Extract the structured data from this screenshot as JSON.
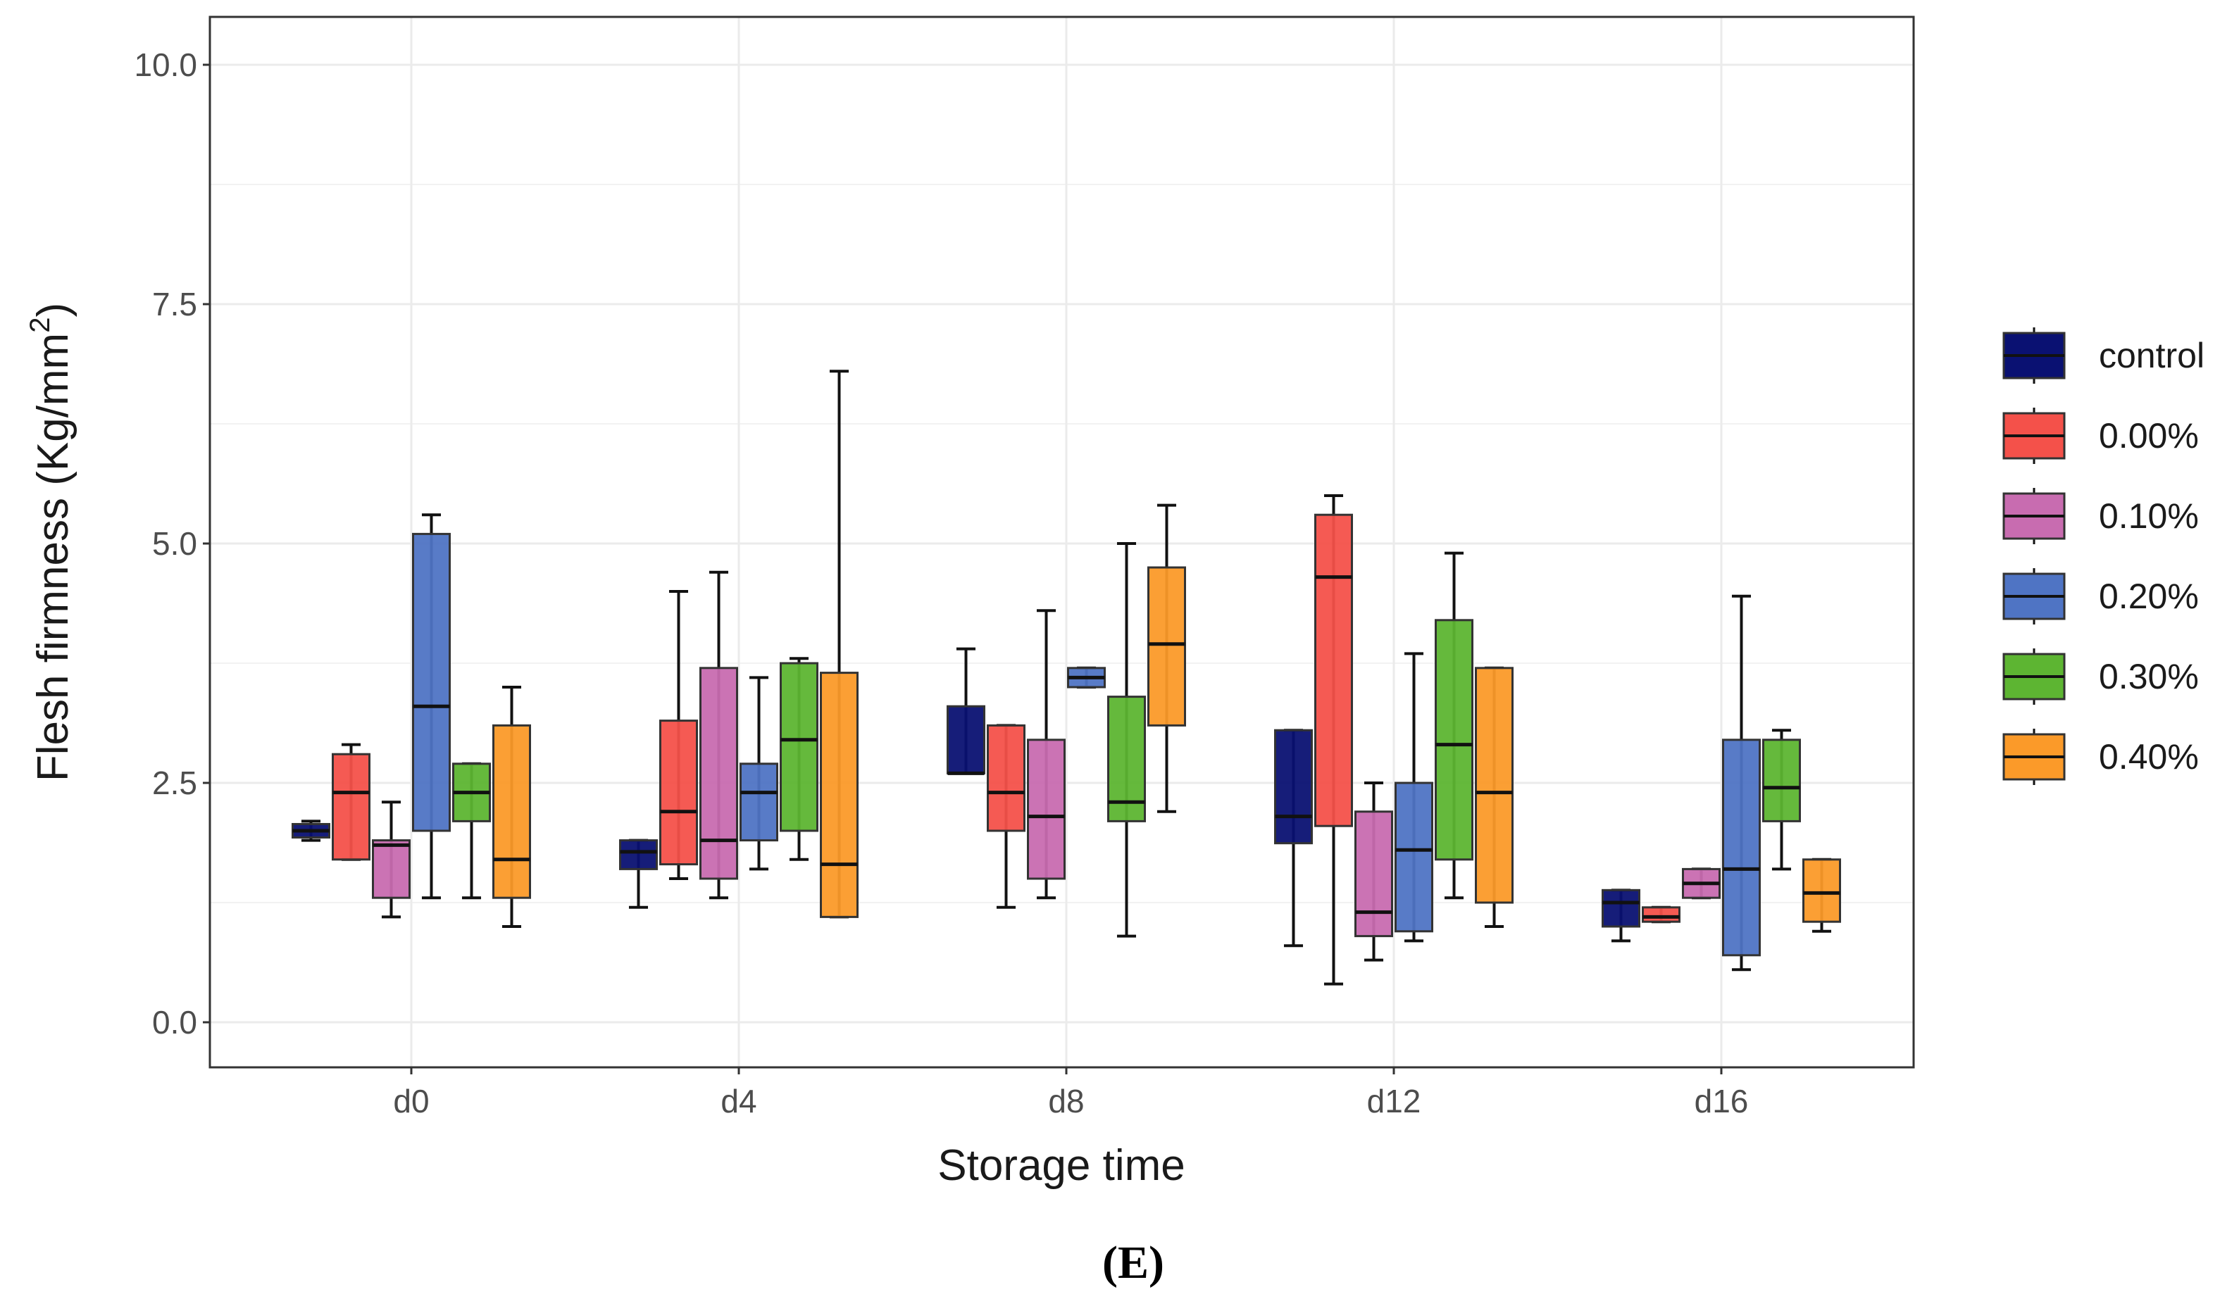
{
  "chart_data": {
    "type": "box",
    "title": "",
    "xlabel": "Storage time",
    "ylabel": "Flesh firmness (Kg/mm",
    "ylabel_superscript": "2",
    "ylabel_close": ")",
    "ylim": [
      -0.45,
      10.5
    ],
    "yticks": [
      0.0,
      2.5,
      5.0,
      7.5,
      10.0
    ],
    "ytick_labels": [
      "0.0",
      "2.5",
      "5.0",
      "7.5",
      "10.0"
    ],
    "categories": [
      "d0",
      "d4",
      "d8",
      "d12",
      "d16"
    ],
    "grid": true,
    "legend_position": "right",
    "caption": "(E)",
    "series": [
      {
        "name": "control",
        "color": "#0a1172",
        "boxes": [
          {
            "min": 1.9,
            "q1": 1.93,
            "median": 2.0,
            "q3": 2.07,
            "max": 2.1
          },
          {
            "min": 1.2,
            "q1": 1.6,
            "median": 1.78,
            "q3": 1.9,
            "max": 1.9
          },
          {
            "min": 2.6,
            "q1": 2.6,
            "median": 2.6,
            "q3": 3.3,
            "max": 3.9
          },
          {
            "min": 0.8,
            "q1": 1.87,
            "median": 2.15,
            "q3": 3.05,
            "max": 3.05
          },
          {
            "min": 0.85,
            "q1": 1.0,
            "median": 1.25,
            "q3": 1.38,
            "max": 1.38
          }
        ]
      },
      {
        "name": "0.00%",
        "color": "#f4514a",
        "boxes": [
          {
            "min": 1.7,
            "q1": 1.7,
            "median": 2.4,
            "q3": 2.8,
            "max": 2.9
          },
          {
            "min": 1.5,
            "q1": 1.65,
            "median": 2.2,
            "q3": 3.15,
            "max": 4.5
          },
          {
            "min": 1.2,
            "q1": 2.0,
            "median": 2.4,
            "q3": 3.1,
            "max": 3.1
          },
          {
            "min": 0.4,
            "q1": 2.05,
            "median": 4.65,
            "q3": 5.3,
            "max": 5.5
          },
          {
            "min": 1.05,
            "q1": 1.05,
            "median": 1.1,
            "q3": 1.2,
            "max": 1.2
          }
        ]
      },
      {
        "name": "0.10%",
        "color": "#c86cb0",
        "boxes": [
          {
            "min": 1.1,
            "q1": 1.3,
            "median": 1.85,
            "q3": 1.9,
            "max": 2.3
          },
          {
            "min": 1.3,
            "q1": 1.5,
            "median": 1.9,
            "q3": 3.7,
            "max": 4.7
          },
          {
            "min": 1.3,
            "q1": 1.5,
            "median": 2.15,
            "q3": 2.95,
            "max": 4.3
          },
          {
            "min": 0.65,
            "q1": 0.9,
            "median": 1.15,
            "q3": 2.2,
            "max": 2.5
          },
          {
            "min": 1.3,
            "q1": 1.3,
            "median": 1.45,
            "q3": 1.6,
            "max": 1.6
          }
        ]
      },
      {
        "name": "0.20%",
        "color": "#4f74c4",
        "boxes": [
          {
            "min": 1.3,
            "q1": 2.0,
            "median": 3.3,
            "q3": 5.1,
            "max": 5.3
          },
          {
            "min": 1.6,
            "q1": 1.9,
            "median": 2.4,
            "q3": 2.7,
            "max": 3.6
          },
          {
            "min": 3.5,
            "q1": 3.5,
            "median": 3.6,
            "q3": 3.7,
            "max": 3.7
          },
          {
            "min": 0.85,
            "q1": 0.95,
            "median": 1.8,
            "q3": 2.5,
            "max": 3.85
          },
          {
            "min": 0.55,
            "q1": 0.7,
            "median": 1.6,
            "q3": 2.95,
            "max": 4.45
          }
        ]
      },
      {
        "name": "0.30%",
        "color": "#5db532",
        "boxes": [
          {
            "min": 1.3,
            "q1": 2.1,
            "median": 2.4,
            "q3": 2.7,
            "max": 2.7
          },
          {
            "min": 1.7,
            "q1": 2.0,
            "median": 2.95,
            "q3": 3.75,
            "max": 3.8
          },
          {
            "min": 0.9,
            "q1": 2.1,
            "median": 2.3,
            "q3": 3.4,
            "max": 5.0
          },
          {
            "min": 1.3,
            "q1": 1.7,
            "median": 2.9,
            "q3": 4.2,
            "max": 4.9
          },
          {
            "min": 1.6,
            "q1": 2.1,
            "median": 2.45,
            "q3": 2.95,
            "max": 3.05
          }
        ]
      },
      {
        "name": "0.40%",
        "color": "#fb9a29",
        "boxes": [
          {
            "min": 1.0,
            "q1": 1.3,
            "median": 1.7,
            "q3": 3.1,
            "max": 3.5
          },
          {
            "min": 1.1,
            "q1": 1.1,
            "median": 1.65,
            "q3": 3.65,
            "max": 6.8
          },
          {
            "min": 2.2,
            "q1": 3.1,
            "median": 3.95,
            "q3": 4.75,
            "max": 5.4
          },
          {
            "min": 1.0,
            "q1": 1.25,
            "median": 2.4,
            "q3": 3.7,
            "max": 3.7
          },
          {
            "min": 0.95,
            "q1": 1.05,
            "median": 1.35,
            "q3": 1.7,
            "max": 1.7
          }
        ]
      }
    ]
  }
}
